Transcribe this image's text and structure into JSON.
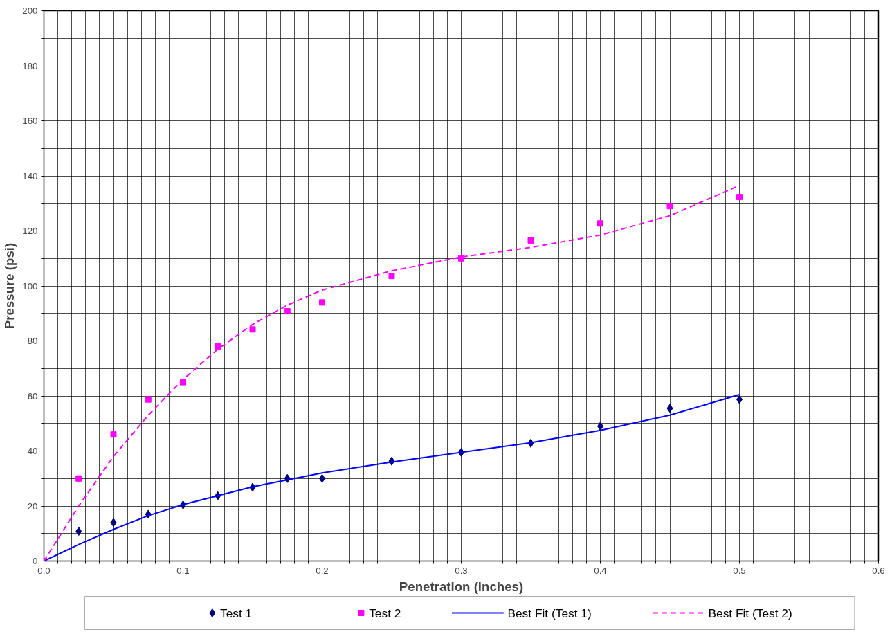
{
  "chart_data": {
    "type": "scatter",
    "xlabel": "Penetration (inches)",
    "ylabel": "Pressure (psi)",
    "xlim": [
      0,
      0.6
    ],
    "ylim": [
      0,
      200
    ],
    "xticks": [
      {
        "value": 0,
        "label": "0.0"
      },
      {
        "value": 0.01,
        "label": null
      },
      {
        "value": 0.02,
        "label": null
      },
      {
        "value": 0.03,
        "label": null
      },
      {
        "value": 0.04,
        "label": null
      },
      {
        "value": 0.05,
        "label": null
      },
      {
        "value": 0.06,
        "label": null
      },
      {
        "value": 0.07,
        "label": null
      },
      {
        "value": 0.08,
        "label": null
      },
      {
        "value": 0.09,
        "label": null
      },
      0.1,
      {
        "value": 0.11,
        "label": null
      },
      {
        "value": 0.12,
        "label": null
      },
      {
        "value": 0.13,
        "label": null
      },
      {
        "value": 0.14,
        "label": null
      },
      {
        "value": 0.15,
        "label": null
      },
      {
        "value": 0.16,
        "label": null
      },
      {
        "value": 0.17,
        "label": null
      },
      {
        "value": 0.18,
        "label": null
      },
      {
        "value": 0.19,
        "label": null
      },
      0.2,
      {
        "value": 0.21,
        "label": null
      },
      {
        "value": 0.22,
        "label": null
      },
      {
        "value": 0.23,
        "label": null
      },
      {
        "value": 0.24,
        "label": null
      },
      {
        "value": 0.25,
        "label": null
      },
      {
        "value": 0.26,
        "label": null
      },
      {
        "value": 0.27,
        "label": null
      },
      {
        "value": 0.28,
        "label": null
      },
      {
        "value": 0.29,
        "label": null
      },
      0.3,
      {
        "value": 0.31,
        "label": null
      },
      {
        "value": 0.32,
        "label": null
      },
      {
        "value": 0.33,
        "label": null
      },
      {
        "value": 0.34,
        "label": null
      },
      {
        "value": 0.35,
        "label": null
      },
      {
        "value": 0.36,
        "label": null
      },
      {
        "value": 0.37,
        "label": null
      },
      {
        "value": 0.38,
        "label": null
      },
      {
        "value": 0.39,
        "label": null
      },
      0.4,
      {
        "value": 0.41,
        "label": null
      },
      {
        "value": 0.42,
        "label": null
      },
      {
        "value": 0.43,
        "label": null
      },
      {
        "value": 0.44,
        "label": null
      },
      {
        "value": 0.45,
        "label": null
      },
      {
        "value": 0.46,
        "label": null
      },
      {
        "value": 0.47,
        "label": null
      },
      {
        "value": 0.48,
        "label": null
      },
      {
        "value": 0.49,
        "label": null
      },
      0.5,
      {
        "value": 0.51,
        "label": null
      },
      {
        "value": 0.52,
        "label": null
      },
      {
        "value": 0.53,
        "label": null
      },
      {
        "value": 0.54,
        "label": null
      },
      {
        "value": 0.55,
        "label": null
      },
      {
        "value": 0.56,
        "label": null
      },
      {
        "value": 0.57,
        "label": null
      },
      {
        "value": 0.58,
        "label": null
      },
      {
        "value": 0.59,
        "label": null
      },
      0.6
    ],
    "yticks": [
      0,
      {
        "value": 10,
        "label": null
      },
      20,
      {
        "value": 30,
        "label": null
      },
      40,
      {
        "value": 50,
        "label": null
      },
      60,
      {
        "value": 70,
        "label": null
      },
      80,
      {
        "value": 90,
        "label": null
      },
      100,
      {
        "value": 110,
        "label": null
      },
      120,
      {
        "value": 130,
        "label": null
      },
      140,
      {
        "value": 150,
        "label": null
      },
      160,
      {
        "value": 170,
        "label": null
      },
      180,
      {
        "value": 190,
        "label": null
      },
      200
    ],
    "grid": true,
    "legend": "bottom",
    "series": [
      {
        "name": "Test 1",
        "marker": "diamond",
        "color": "#000080",
        "x": [
          0.025,
          0.05,
          0.075,
          0.1,
          0.125,
          0.15,
          0.175,
          0.2,
          0.25,
          0.3,
          0.35,
          0.4,
          0.45,
          0.5
        ],
        "values": [
          10.8,
          14,
          17,
          20.4,
          23.7,
          26.8,
          30,
          30,
          36.3,
          39.5,
          42.8,
          49,
          55.5,
          58.7
        ]
      },
      {
        "name": "Test 2",
        "marker": "square",
        "color": "#ff00ff",
        "x": [
          0,
          0.025,
          0.05,
          0.075,
          0.1,
          0.125,
          0.15,
          0.175,
          0.2,
          0.25,
          0.3,
          0.35,
          0.4,
          0.45,
          0.5
        ],
        "values": [
          0,
          30,
          46,
          58.7,
          65,
          78,
          84.2,
          90.8,
          94,
          103.6,
          110,
          116.5,
          122.7,
          129,
          132.3
        ]
      },
      {
        "name": "Best Fit (Test 1)",
        "type": "line",
        "line_style": "solid",
        "color": "#0000ff",
        "x": [
          0,
          0.025,
          0.05,
          0.075,
          0.1,
          0.15,
          0.2,
          0.25,
          0.3,
          0.35,
          0.4,
          0.45,
          0.5
        ],
        "values": [
          0,
          6,
          11.5,
          16.5,
          20.5,
          27,
          32,
          36,
          39.5,
          43,
          47.5,
          53,
          60.5
        ]
      },
      {
        "name": "Best Fit (Test 2)",
        "type": "line",
        "line_style": "dashed",
        "color": "#ff00ff",
        "x": [
          0,
          0.025,
          0.05,
          0.075,
          0.1,
          0.125,
          0.15,
          0.175,
          0.2,
          0.25,
          0.3,
          0.35,
          0.4,
          0.45,
          0.5
        ],
        "values": [
          0,
          20,
          38,
          53,
          66,
          77,
          86,
          93,
          98.5,
          105.5,
          110.5,
          114,
          118.5,
          125.5,
          136.5
        ]
      }
    ]
  }
}
